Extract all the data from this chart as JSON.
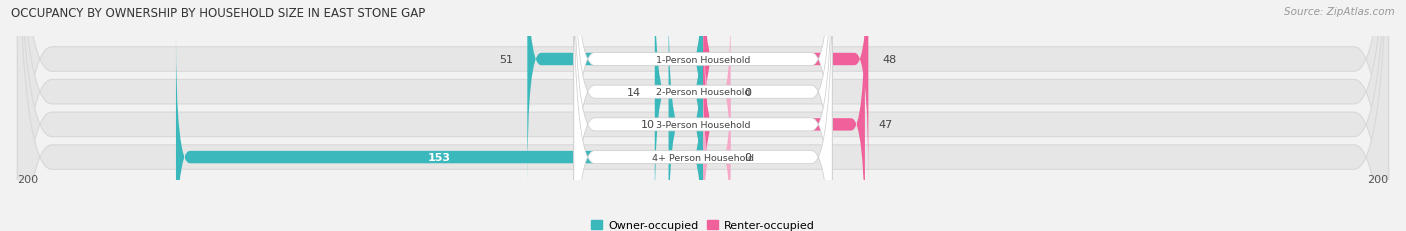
{
  "title": "OCCUPANCY BY OWNERSHIP BY HOUSEHOLD SIZE IN EAST STONE GAP",
  "source": "Source: ZipAtlas.com",
  "categories": [
    "1-Person Household",
    "2-Person Household",
    "3-Person Household",
    "4+ Person Household"
  ],
  "owner_values": [
    51,
    14,
    10,
    153
  ],
  "renter_values": [
    48,
    0,
    47,
    0
  ],
  "renter_small_values": [
    0,
    0,
    0,
    0
  ],
  "owner_color": "#3bb8bb",
  "renter_color_dark": "#f0609a",
  "renter_color_light": "#f5a8c8",
  "axis_max": 200,
  "bg_color": "#f2f2f2",
  "row_bg_color": "#e6e6e6",
  "row_border_color": "#d8d8d8",
  "legend_owner": "Owner-occupied",
  "legend_renter": "Renter-occupied"
}
